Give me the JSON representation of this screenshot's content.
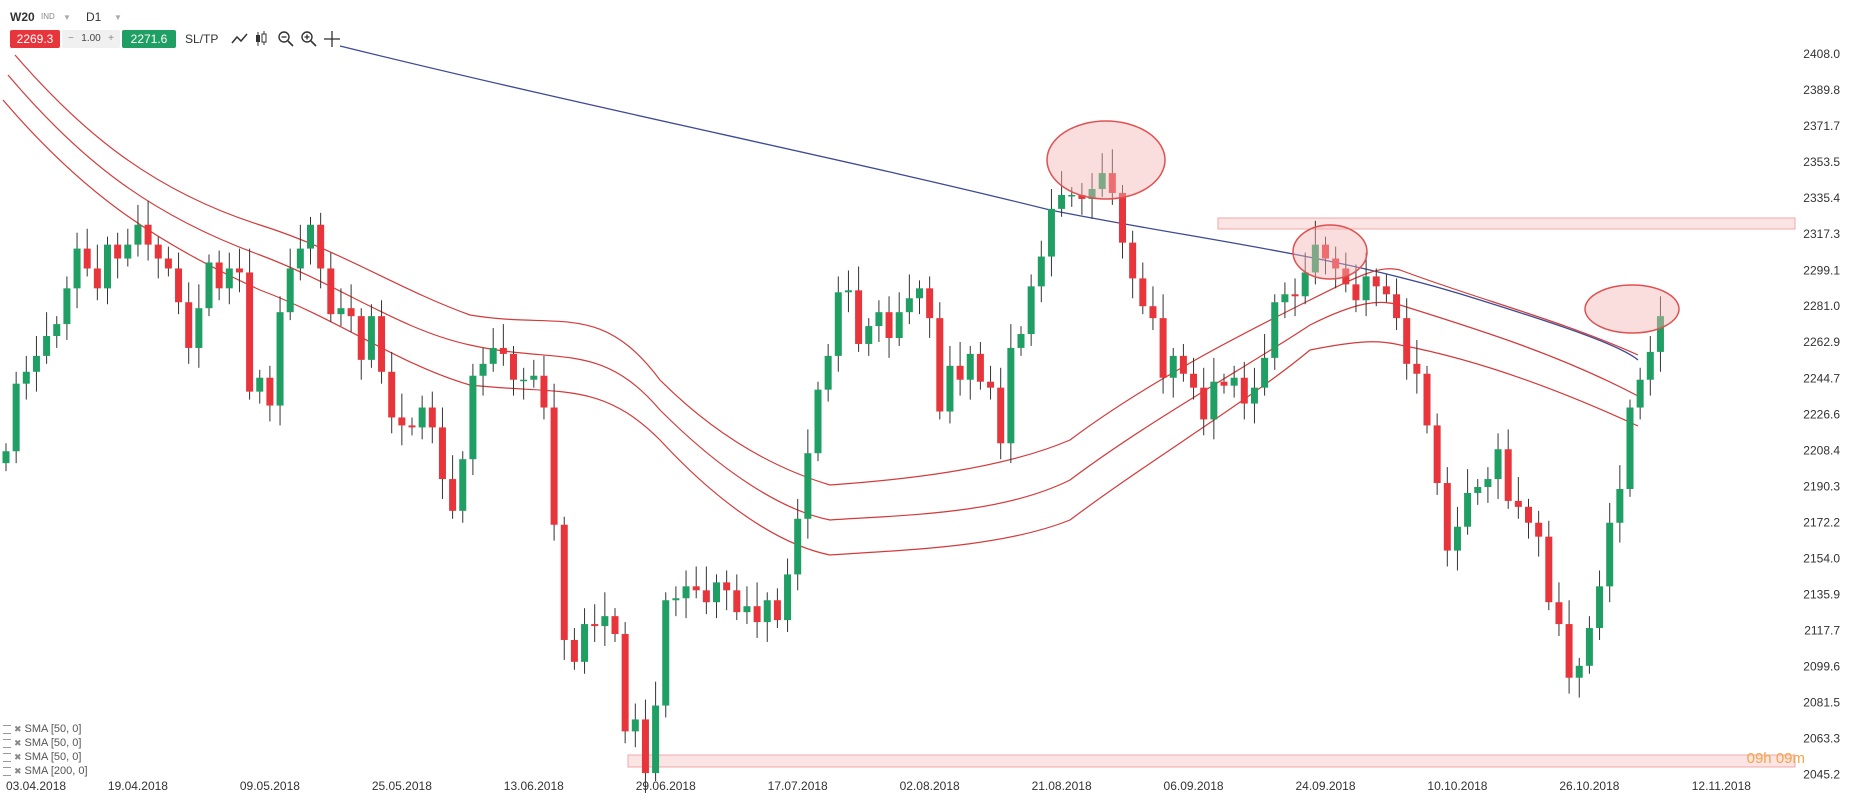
{
  "toolbar": {
    "symbol": "W20",
    "symbol_type": "IND",
    "timeframe": "D1",
    "bid": "2269.3",
    "quantity": "1.00",
    "qty_minus": "−",
    "qty_plus": "+",
    "ask": "2271.6",
    "sltp_label": "SL/TP",
    "icons": [
      "line-chart-icon",
      "candlestick-icon",
      "zoom-out-icon",
      "zoom-in-icon",
      "crosshair-icon"
    ]
  },
  "indicators": [
    {
      "label": "SMA [50, 0]"
    },
    {
      "label": "SMA [50, 0]"
    },
    {
      "label": "SMA [50, 0]"
    },
    {
      "label": "SMA [200, 0]"
    }
  ],
  "timer": "09h 09m",
  "colors": {
    "bull": "#1f9f63",
    "bear": "#e8353b",
    "sma200": "#3d4a94",
    "sma50": "#d33a3a",
    "zone": "#f7c9c9"
  },
  "chart_data": {
    "type": "candlestick",
    "ylim": [
      2040,
      2415
    ],
    "y_ticks": [
      "2408.0",
      "2389.8",
      "2371.7",
      "2353.5",
      "2335.4",
      "2317.3",
      "2299.1",
      "2281.0",
      "2262.9",
      "2244.7",
      "2226.6",
      "2208.4",
      "2190.3",
      "2172.2",
      "2154.0",
      "2135.9",
      "2117.7",
      "2099.6",
      "2081.5",
      "2063.3",
      "2045.2"
    ],
    "x_labels": [
      "03.04.2018",
      "19.04.2018",
      "09.05.2018",
      "25.05.2018",
      "13.06.2018",
      "29.06.2018",
      "17.07.2018",
      "02.08.2018",
      "21.08.2018",
      "06.09.2018",
      "24.09.2018",
      "10.10.2018",
      "26.10.2018",
      "12.11.2018"
    ],
    "x_label_index": [
      0,
      13,
      26,
      39,
      52,
      65,
      78,
      91,
      104,
      117,
      130,
      143,
      156,
      169
    ],
    "candles_close": [
      2208,
      2242,
      2248,
      2256,
      2266,
      2272,
      2290,
      2310,
      2300,
      2290,
      2312,
      2305,
      2312,
      2322,
      2312,
      2305,
      2300,
      2283,
      2260,
      2280,
      2303,
      2290,
      2300,
      2298,
      2238,
      2245,
      2231,
      2278,
      2300,
      2310,
      2322,
      2300,
      2277,
      2280,
      2276,
      2254,
      2276,
      2248,
      2225,
      2221,
      2220,
      2230,
      2220,
      2194,
      2178,
      2204,
      2246,
      2252,
      2260,
      2257,
      2244,
      2244,
      2246,
      2230,
      2171,
      2113,
      2102,
      2121,
      2120,
      2125,
      2116,
      2067,
      2073,
      2046,
      2080,
      2133,
      2134,
      2140,
      2138,
      2132,
      2142,
      2138,
      2127,
      2130,
      2122,
      2133,
      2123,
      2146,
      2174,
      2207,
      2239,
      2256,
      2288,
      2289,
      2262,
      2271,
      2278,
      2265,
      2278,
      2285,
      2290,
      2275,
      2228,
      2251,
      2244,
      2257,
      2243,
      2240,
      2212,
      2260,
      2267,
      2291,
      2306,
      2330,
      2337,
      2337,
      2335,
      2340,
      2348,
      2338,
      2313,
      2295,
      2281,
      2275,
      2245,
      2256,
      2247,
      2240,
      2224,
      2243,
      2241,
      2245,
      2232,
      2240,
      2255,
      2283,
      2287,
      2286,
      2298,
      2312,
      2305,
      2300,
      2292,
      2284,
      2296,
      2291,
      2287,
      2275,
      2252,
      2247,
      2221,
      2192,
      2158,
      2170,
      2187,
      2190,
      2194,
      2209,
      2183,
      2180,
      2172,
      2165,
      2132,
      2121,
      2094,
      2100,
      2119,
      2140,
      2172,
      2189,
      2230,
      2244,
      2258,
      2276
    ]
  }
}
